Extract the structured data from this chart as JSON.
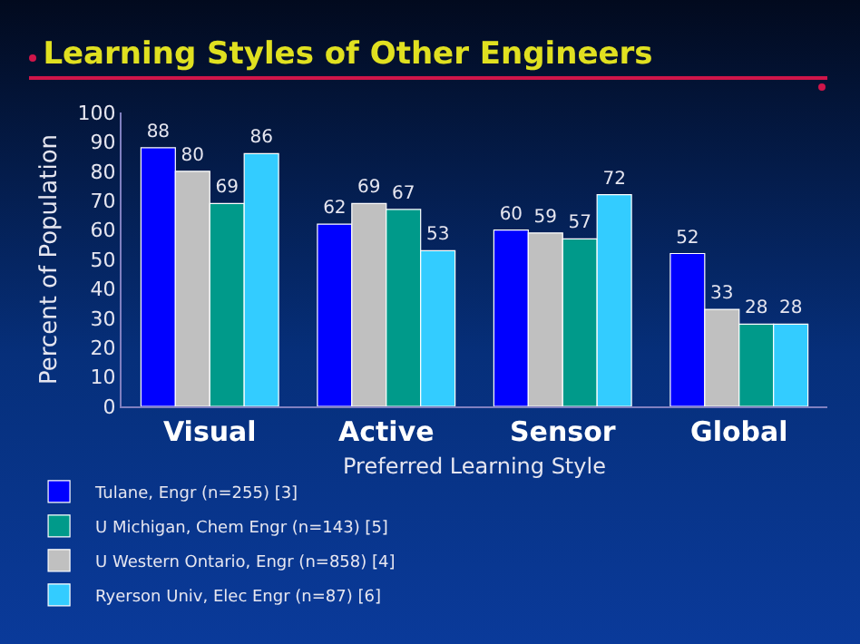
{
  "chart_data": {
    "type": "bar",
    "title": "Learning Styles of Other Engineers",
    "xlabel": "Preferred Learning Style",
    "ylabel": "Percent of Population",
    "categories": [
      "Visual",
      "Active",
      "Sensor",
      "Global"
    ],
    "series": [
      {
        "name": "Tulane, Engr (n=255) [3]",
        "color": "#0000ff",
        "values": [
          88,
          62,
          60,
          52
        ]
      },
      {
        "name": "U Western Ontario, Engr (n=858) [4]",
        "color": "#c0c0c0",
        "values": [
          80,
          69,
          59,
          33
        ]
      },
      {
        "name": "U Michigan, Chem Engr (n=143) [5]",
        "color": "#009a8a",
        "values": [
          69,
          67,
          57,
          28
        ]
      },
      {
        "name": "Ryerson Univ, Elec Engr (n=87) [6]",
        "color": "#33ccff",
        "values": [
          86,
          53,
          72,
          28
        ]
      }
    ],
    "ylim": [
      0,
      100
    ],
    "yticks": [
      0,
      10,
      20,
      30,
      40,
      50,
      60,
      70,
      80,
      90,
      100
    ],
    "grid": false,
    "legend": "bottom",
    "data_labels": true
  }
}
